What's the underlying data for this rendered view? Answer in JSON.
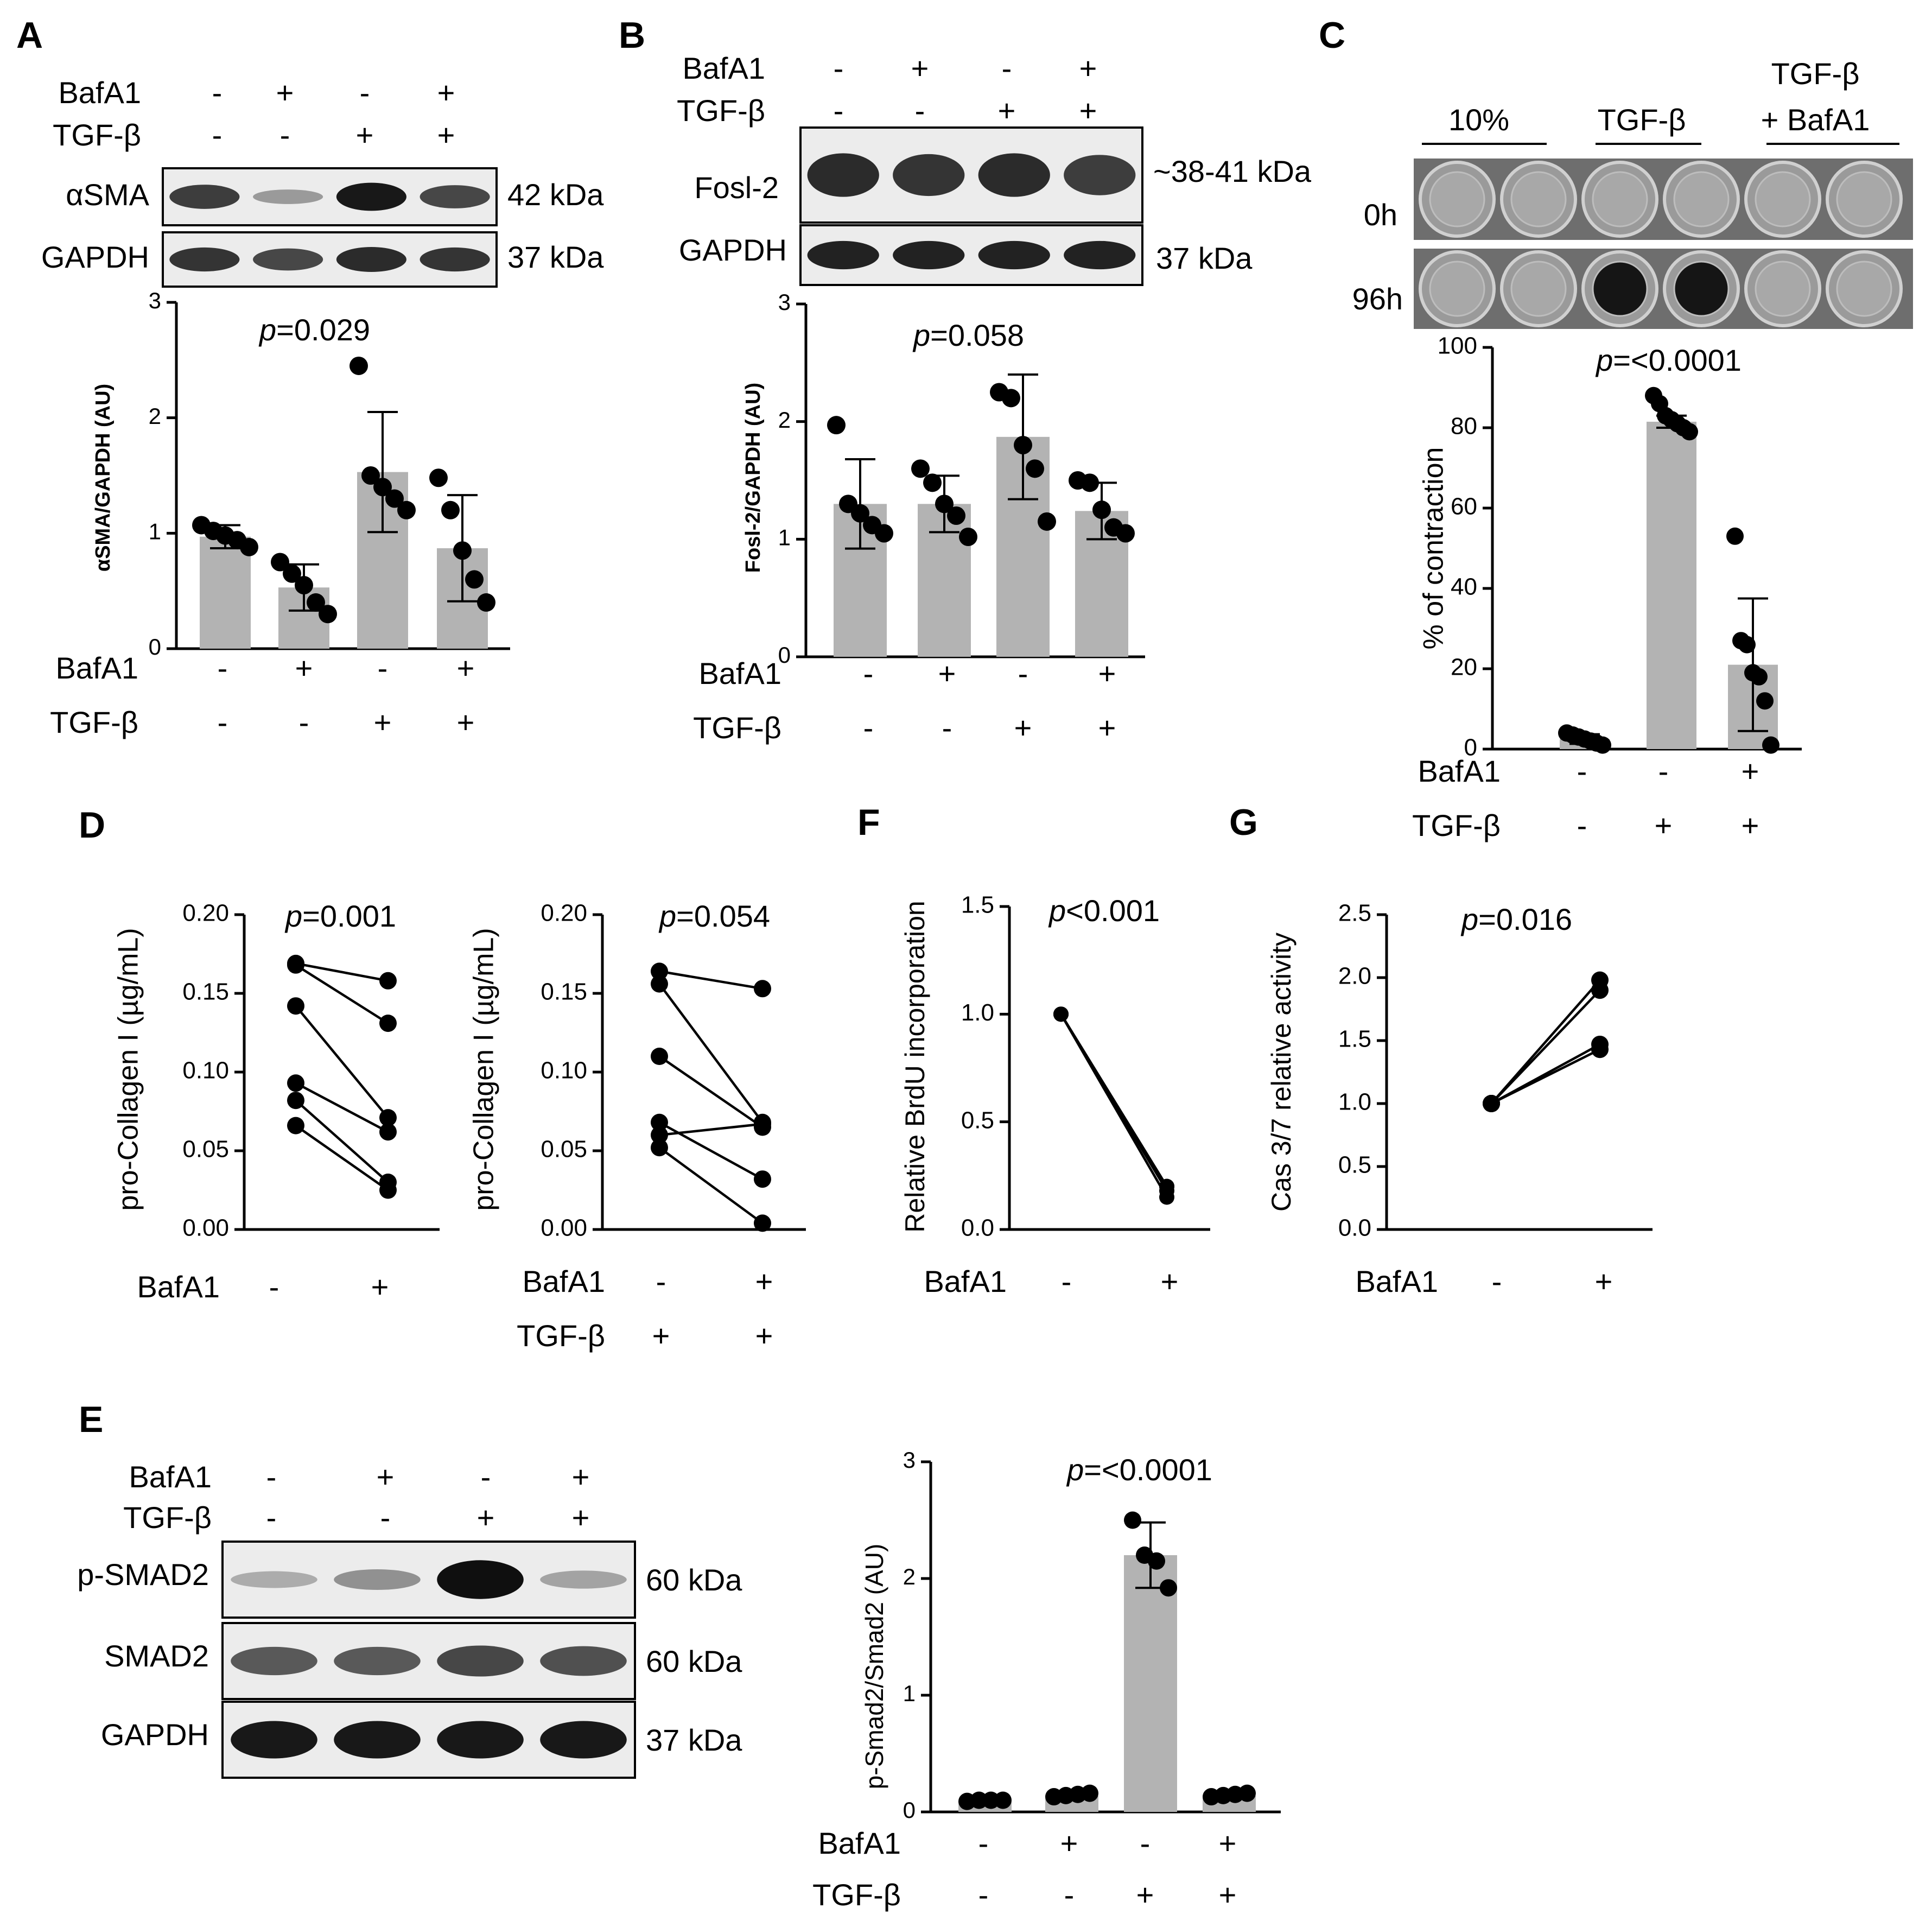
{
  "panels": [
    {
      "id": "A",
      "letter": "A",
      "blot": {
        "cond": [
          {
            "label": "BafA1",
            "signs": [
              "-",
              "+",
              "-",
              "+"
            ]
          },
          {
            "label": "TGF-β",
            "signs": [
              "-",
              "-",
              "+",
              "+"
            ]
          }
        ],
        "rows": [
          {
            "label": "αSMA",
            "kda": "42 kDa",
            "bands": [
              0.75,
              0.25,
              0.95,
              0.7
            ]
          },
          {
            "label": "GAPDH",
            "kda": "37 kDa",
            "bands": [
              0.8,
              0.7,
              0.85,
              0.8
            ]
          }
        ]
      },
      "y_ticks": [
        "0",
        "1",
        "2",
        "3"
      ],
      "pvalue": "p=0.029",
      "below_labels": [
        {
          "label": "BafA1",
          "signs": [
            "-",
            "+",
            "-",
            "+"
          ]
        },
        {
          "label": "TGF-β",
          "signs": [
            "-",
            "-",
            "+",
            "+"
          ]
        }
      ]
    },
    {
      "id": "B",
      "letter": "B",
      "blot": {
        "cond": [
          {
            "label": "BafA1",
            "signs": [
              "-",
              "+",
              "-",
              "+"
            ]
          },
          {
            "label": "TGF-β",
            "signs": [
              "-",
              "-",
              "+",
              "+"
            ]
          }
        ],
        "rows": [
          {
            "label": "Fosl-2",
            "kda": "~38-41 kDa",
            "bands": [
              0.85,
              0.8,
              0.85,
              0.75
            ]
          },
          {
            "label": "GAPDH",
            "kda": "37 kDa",
            "bands": [
              0.9,
              0.9,
              0.9,
              0.9
            ]
          }
        ]
      },
      "y_ticks": [
        "0",
        "1",
        "2",
        "3"
      ],
      "pvalue": "p=0.058",
      "below_labels": [
        {
          "label": "BafA1",
          "signs": [
            "-",
            "+",
            "-",
            "+"
          ]
        },
        {
          "label": "TGF-β",
          "signs": [
            "-",
            "-",
            "+",
            "+"
          ]
        }
      ]
    },
    {
      "id": "C",
      "letter": "C",
      "headers": [
        "10%",
        "TGF-β",
        "TGF-β",
        "+ BafA1"
      ],
      "row_labels": [
        "0h",
        "96h"
      ],
      "y_ticks": [
        "0",
        "20",
        "40",
        "60",
        "80",
        "100"
      ],
      "pvalue": "p=<0.0001",
      "below_labels": [
        {
          "label": "BafA1",
          "signs": [
            "-",
            "-",
            "+"
          ]
        },
        {
          "label": "TGF-β",
          "signs": [
            "-",
            "+",
            "+"
          ]
        }
      ]
    },
    {
      "id": "D",
      "letter": "D",
      "y_ticks": [
        "0.00",
        "0.05",
        "0.10",
        "0.15",
        "0.20"
      ],
      "left": {
        "pvalue": "p=0.001",
        "below_labels": [
          {
            "label": "BafA1",
            "signs": [
              "-",
              "+"
            ]
          }
        ]
      },
      "right": {
        "pvalue": "p=0.054",
        "below_labels": [
          {
            "label": "BafA1",
            "signs": [
              "-",
              "+"
            ]
          },
          {
            "label": "TGF-β",
            "signs": [
              "+",
              "+"
            ]
          }
        ]
      }
    },
    {
      "id": "F",
      "letter": "F",
      "y_ticks": [
        "0.0",
        "0.5",
        "1.0",
        "1.5"
      ],
      "pvalue": "p<0.001",
      "below_labels": [
        {
          "label": "BafA1",
          "signs": [
            "-",
            "+"
          ]
        }
      ]
    },
    {
      "id": "G",
      "letter": "G",
      "y_ticks": [
        "0.0",
        "0.5",
        "1.0",
        "1.5",
        "2.0",
        "2.5"
      ],
      "pvalue": "p=0.016",
      "below_labels": [
        {
          "label": "BafA1",
          "signs": [
            "-",
            "+"
          ]
        }
      ]
    },
    {
      "id": "E",
      "letter": "E",
      "blot": {
        "cond": [
          {
            "label": "BafA1",
            "signs": [
              "-",
              "+",
              "-",
              "+"
            ]
          },
          {
            "label": "TGF-β",
            "signs": [
              "-",
              "-",
              "+",
              "+"
            ]
          }
        ],
        "rows": [
          {
            "label": "p-SMAD2",
            "kda": "60 kDa",
            "bands": [
              0.15,
              0.3,
              1.0,
              0.2
            ]
          },
          {
            "label": "SMAD2",
            "kda": "60 kDa",
            "bands": [
              0.6,
              0.6,
              0.7,
              0.65
            ]
          },
          {
            "label": "GAPDH",
            "kda": "37 kDa",
            "bands": [
              0.95,
              0.95,
              0.95,
              0.95
            ]
          }
        ]
      },
      "y_ticks": [
        "0",
        "1",
        "2",
        "3"
      ],
      "pvalue": "p=<0.0001",
      "below_labels": [
        {
          "label": "BafA1",
          "signs": [
            "-",
            "+",
            "-",
            "+"
          ]
        },
        {
          "label": "TGF-β",
          "signs": [
            "-",
            "-",
            "+",
            "+"
          ]
        }
      ]
    }
  ],
  "chart_data": [
    {
      "panel": "A",
      "type": "bar",
      "ylabel": "αSMA/GAPDH (AU)",
      "ylim": [
        0,
        3
      ],
      "means": [
        0.97,
        0.53,
        1.53,
        0.87
      ],
      "sd": [
        0.1,
        0.2,
        0.52,
        0.46
      ],
      "points": [
        [
          1.07,
          1.02,
          0.98,
          0.94,
          0.88
        ],
        [
          0.75,
          0.65,
          0.55,
          0.4,
          0.3
        ],
        [
          2.45,
          1.5,
          1.4,
          1.3,
          1.2
        ],
        [
          1.48,
          1.2,
          0.85,
          0.6,
          0.4
        ]
      ]
    },
    {
      "panel": "B",
      "type": "bar",
      "ylabel": "Fosl-2/GAPDH (AU)",
      "ylim": [
        0,
        3
      ],
      "means": [
        1.3,
        1.3,
        1.87,
        1.24
      ],
      "sd": [
        0.38,
        0.24,
        0.53,
        0.24
      ],
      "points": [
        [
          1.97,
          1.3,
          1.22,
          1.12,
          1.05
        ],
        [
          1.6,
          1.48,
          1.3,
          1.2,
          1.02
        ],
        [
          2.25,
          2.2,
          1.8,
          1.6,
          1.15
        ],
        [
          1.5,
          1.48,
          1.25,
          1.1,
          1.05
        ]
      ]
    },
    {
      "panel": "C",
      "type": "bar",
      "ylabel": "% of contraction",
      "ylim": [
        0,
        100
      ],
      "means": [
        2.5,
        81.5,
        21
      ],
      "sd": [
        1.2,
        1.5,
        16.5
      ],
      "points": [
        [
          4,
          3.5,
          3,
          2.5,
          2,
          1.5,
          1
        ],
        [
          88,
          86,
          83,
          82,
          81,
          80,
          79
        ],
        [
          53,
          27,
          26,
          19,
          18,
          12,
          1
        ]
      ]
    },
    {
      "panel": "D-left",
      "type": "scatter",
      "ylabel": "pro-Collagen I (µg/mL)",
      "ylim": [
        0,
        0.2
      ],
      "pairs": [
        [
          0.169,
          0.158
        ],
        [
          0.168,
          0.131
        ],
        [
          0.142,
          0.071
        ],
        [
          0.093,
          0.062
        ],
        [
          0.082,
          0.03
        ],
        [
          0.066,
          0.025
        ]
      ]
    },
    {
      "panel": "D-right",
      "type": "scatter",
      "ylabel": "pro-Collagen I (µg/mL)",
      "ylim": [
        0,
        0.2
      ],
      "pairs": [
        [
          0.164,
          0.153
        ],
        [
          0.156,
          0.068
        ],
        [
          0.11,
          0.065
        ],
        [
          0.068,
          0.032
        ],
        [
          0.06,
          0.067
        ],
        [
          0.052,
          0.004
        ]
      ]
    },
    {
      "panel": "F",
      "type": "scatter",
      "ylabel": "Relative BrdU incorporation",
      "ylim": [
        0,
        1.5
      ],
      "pairs": [
        [
          1.0,
          0.2
        ],
        [
          1.0,
          0.18
        ],
        [
          1.0,
          0.15
        ],
        [
          1.0,
          0.2
        ]
      ]
    },
    {
      "panel": "G",
      "type": "scatter",
      "ylabel": "Cas 3/7 relative activity",
      "ylim": [
        0,
        2.5
      ],
      "pairs": [
        [
          1.0,
          1.98
        ],
        [
          1.0,
          1.9
        ],
        [
          1.0,
          1.47
        ],
        [
          1.0,
          1.43
        ]
      ]
    },
    {
      "panel": "E",
      "type": "bar",
      "ylabel": "p-Smad2/Smad2 (AU)",
      "ylim": [
        0,
        3
      ],
      "means": [
        0.09,
        0.14,
        2.2,
        0.14
      ],
      "sd": [
        0.01,
        0.01,
        0.28,
        0.01
      ],
      "points": [
        [
          0.09,
          0.1,
          0.1,
          0.1
        ],
        [
          0.13,
          0.14,
          0.15,
          0.16
        ],
        [
          2.5,
          2.2,
          2.15,
          1.92
        ],
        [
          0.13,
          0.14,
          0.15,
          0.16
        ]
      ]
    }
  ]
}
